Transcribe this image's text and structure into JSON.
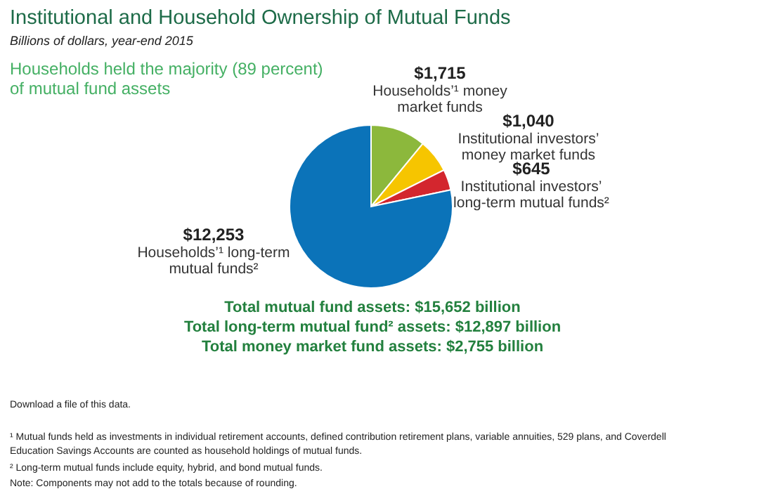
{
  "chart_data": {
    "type": "pie",
    "title": "Institutional and Household Ownership of Mutual Funds",
    "subtitle": "Billions of dollars, year-end 2015",
    "categories": [
      "Households’¹ money market funds",
      "Institutional investors’ money market funds",
      "Institutional investors’ long-term mutual funds²",
      "Households’¹ long-term mutual funds²"
    ],
    "values": [
      1715,
      1040,
      645,
      12253
    ],
    "value_labels": [
      "$1,715",
      "$1,040",
      "$645",
      "$12,253"
    ],
    "colors": [
      "#8cb83c",
      "#f6c500",
      "#d3262e",
      "#0b73b9"
    ],
    "annotations": [
      "Households held the majority (89 percent) of mutual fund assets",
      "Total mutual fund assets: $15,652 billion",
      "Total long-term mutual fund² assets: $12,897 billion",
      "Total money market fund assets: $2,755 billion",
      "Download a file of this data.",
      "¹ Mutual funds held as investments in individual retirement accounts, defined contribution retirement plans, variable annuities, 529 plans, and Coverdell Education Savings Accounts are counted as household holdings of mutual funds.",
      "² Long-term mutual funds include equity, hybrid, and bond mutual funds.",
      "Note: Components may not add to the totals because of rounding."
    ]
  }
}
